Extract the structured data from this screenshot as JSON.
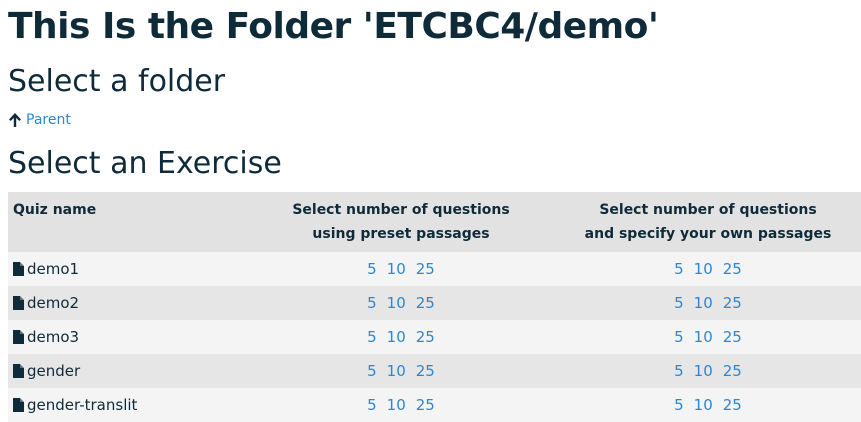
{
  "page_title": "This Is the Folder 'ETCBC4/demo'",
  "folder_section": {
    "heading": "Select a folder",
    "parent_link": "Parent",
    "parent_icon": "arrow-up-icon"
  },
  "exercise_section": {
    "heading": "Select an Exercise",
    "columns": {
      "name": "Quiz name",
      "preset_line1": "Select number of questions",
      "preset_line2": "using preset passages",
      "custom_line1": "Select number of questions",
      "custom_line2": "and specify your own passages"
    },
    "rows": [
      {
        "name": "demo1",
        "preset": [
          "5",
          "10",
          "25"
        ],
        "custom": [
          "5",
          "10",
          "25"
        ]
      },
      {
        "name": "demo2",
        "preset": [
          "5",
          "10",
          "25"
        ],
        "custom": [
          "5",
          "10",
          "25"
        ]
      },
      {
        "name": "demo3",
        "preset": [
          "5",
          "10",
          "25"
        ],
        "custom": [
          "5",
          "10",
          "25"
        ]
      },
      {
        "name": "gender",
        "preset": [
          "5",
          "10",
          "25"
        ],
        "custom": [
          "5",
          "10",
          "25"
        ]
      },
      {
        "name": "gender-translit",
        "preset": [
          "5",
          "10",
          "25"
        ],
        "custom": [
          "5",
          "10",
          "25"
        ]
      }
    ],
    "file_icon": "file-icon"
  },
  "colors": {
    "heading": "#0f2b3a",
    "link": "#2d86cf",
    "header_bg": "#e2e2e2",
    "row_odd": "#f4f4f4",
    "row_even": "#e6e6e6"
  }
}
